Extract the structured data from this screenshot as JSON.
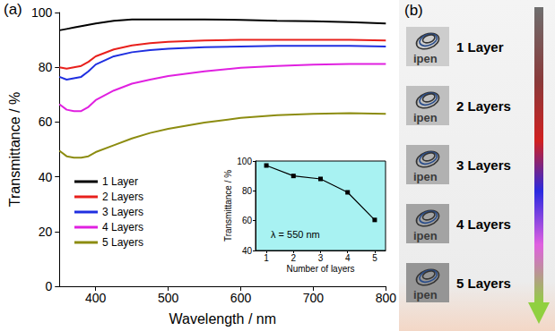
{
  "panel_labels": [
    "(a)",
    "(b)"
  ],
  "chart_data": [
    {
      "type": "line",
      "x_label": "Wavelength / nm",
      "y_label": "Transmittance / %",
      "x": [
        350,
        360,
        370,
        380,
        390,
        400,
        425,
        450,
        475,
        500,
        550,
        600,
        650,
        700,
        750,
        800
      ],
      "series": [
        {
          "name": "1 Layer",
          "color": "#000000",
          "values": [
            93.5,
            94,
            94.5,
            95,
            95.5,
            96,
            97,
            97.5,
            97.5,
            97.5,
            97.5,
            97.3,
            97,
            96.8,
            96.5,
            96
          ]
        },
        {
          "name": "2 Layers",
          "color": "#e8201c",
          "values": [
            80,
            79.5,
            80,
            80.5,
            82,
            84,
            86.5,
            88,
            88.8,
            89.3,
            89.8,
            90,
            90,
            90,
            90,
            89.8
          ]
        },
        {
          "name": "3 Layers",
          "color": "#1f2fe0",
          "values": [
            76.5,
            75.5,
            76,
            76.5,
            78.5,
            81,
            84,
            85.5,
            86.3,
            86.8,
            87.3,
            87.6,
            87.8,
            87.8,
            87.8,
            87.6
          ]
        },
        {
          "name": "4 Layers",
          "color": "#e020e0",
          "values": [
            66.5,
            64.5,
            64,
            64,
            65.5,
            68,
            71.5,
            74,
            75.5,
            76.8,
            78.5,
            79.8,
            80.5,
            81,
            81.2,
            81.2
          ]
        },
        {
          "name": "5 Layers",
          "color": "#8c8c10",
          "values": [
            49.5,
            47.5,
            47,
            47,
            47.5,
            49,
            51.5,
            54,
            56,
            57.5,
            59.8,
            61.5,
            62.5,
            63,
            63.2,
            63
          ]
        }
      ],
      "xlim": [
        350,
        800
      ],
      "xticks": [
        400,
        500,
        600,
        700,
        800
      ],
      "ylim": [
        0,
        100
      ],
      "yticks": [
        0,
        20,
        40,
        60,
        80,
        100
      ],
      "grid": false,
      "legend": "lower left"
    },
    {
      "type": "line",
      "x_label": "Number of layers",
      "y_label": "Transmittance / %",
      "annotations": [
        "λ = 550 nm"
      ],
      "x": [
        1,
        2,
        3,
        4,
        5
      ],
      "values": [
        97,
        90,
        88,
        79,
        60.5
      ],
      "color": "#000000",
      "marker": "square",
      "xlim": [
        0.6,
        5.4
      ],
      "xticks": [
        1,
        2,
        3,
        4,
        5
      ],
      "ylim": [
        40,
        100
      ],
      "yticks": [
        40,
        60,
        80,
        100
      ],
      "grid": false
    }
  ],
  "photo_panel": {
    "logo_text": "ipen",
    "items": [
      "1 Layer",
      "2 Layers",
      "3 Layers",
      "4 Layers",
      "5 Layers"
    ]
  }
}
